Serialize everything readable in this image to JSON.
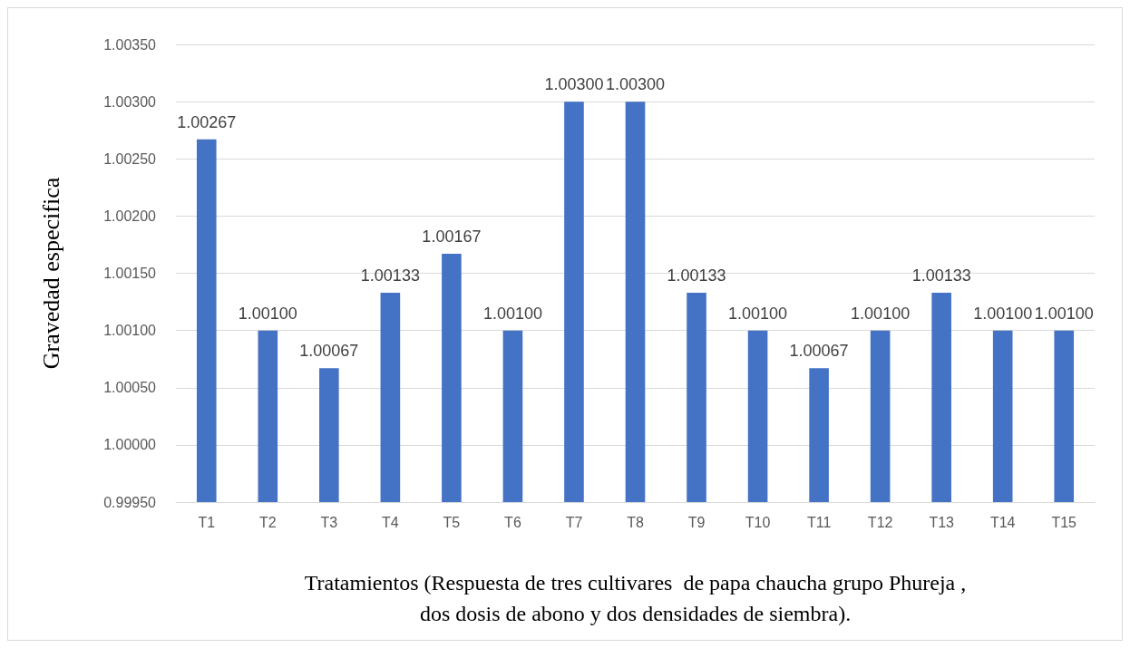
{
  "chart_data": {
    "type": "bar",
    "xlabel": "Tratamientos (Respuesta de tres cultivares  de papa chaucha grupo Phureja ,\ndos dosis de abono y dos densidades de siembra).",
    "ylabel": "Gravedad especifica",
    "categories": [
      "T1",
      "T2",
      "T3",
      "T4",
      "T5",
      "T6",
      "T7",
      "T8",
      "T9",
      "T10",
      "T11",
      "T12",
      "T13",
      "T14",
      "T15"
    ],
    "values": [
      1.00267,
      1.001,
      1.00067,
      1.00133,
      1.00167,
      1.001,
      1.003,
      1.003,
      1.00133,
      1.001,
      1.00067,
      1.001,
      1.00133,
      1.001,
      1.001
    ],
    "value_labels": [
      "1.00267",
      "1.00100",
      "1.00067",
      "1.00133",
      "1.00167",
      "1.00100",
      "1.00300",
      "1.00300",
      "1.00133",
      "1.00100",
      "1.00067",
      "1.00100",
      "1.00133",
      "1.00100",
      "1.00100"
    ],
    "color": "#4472c4",
    "ylim": [
      0.9995,
      1.0035
    ],
    "yticks": [
      {
        "value": 0.9995,
        "label": "0.99950"
      },
      {
        "value": 1.0,
        "label": "1.00000"
      },
      {
        "value": 1.0005,
        "label": "1.00050"
      },
      {
        "value": 1.001,
        "label": "1.00100"
      },
      {
        "value": 1.0015,
        "label": "1.00150"
      },
      {
        "value": 1.002,
        "label": "1.00200"
      },
      {
        "value": 1.0025,
        "label": "1.00250"
      },
      {
        "value": 1.003,
        "label": "1.00300"
      },
      {
        "value": 1.0035,
        "label": "1.00350"
      }
    ],
    "grid": "y"
  }
}
